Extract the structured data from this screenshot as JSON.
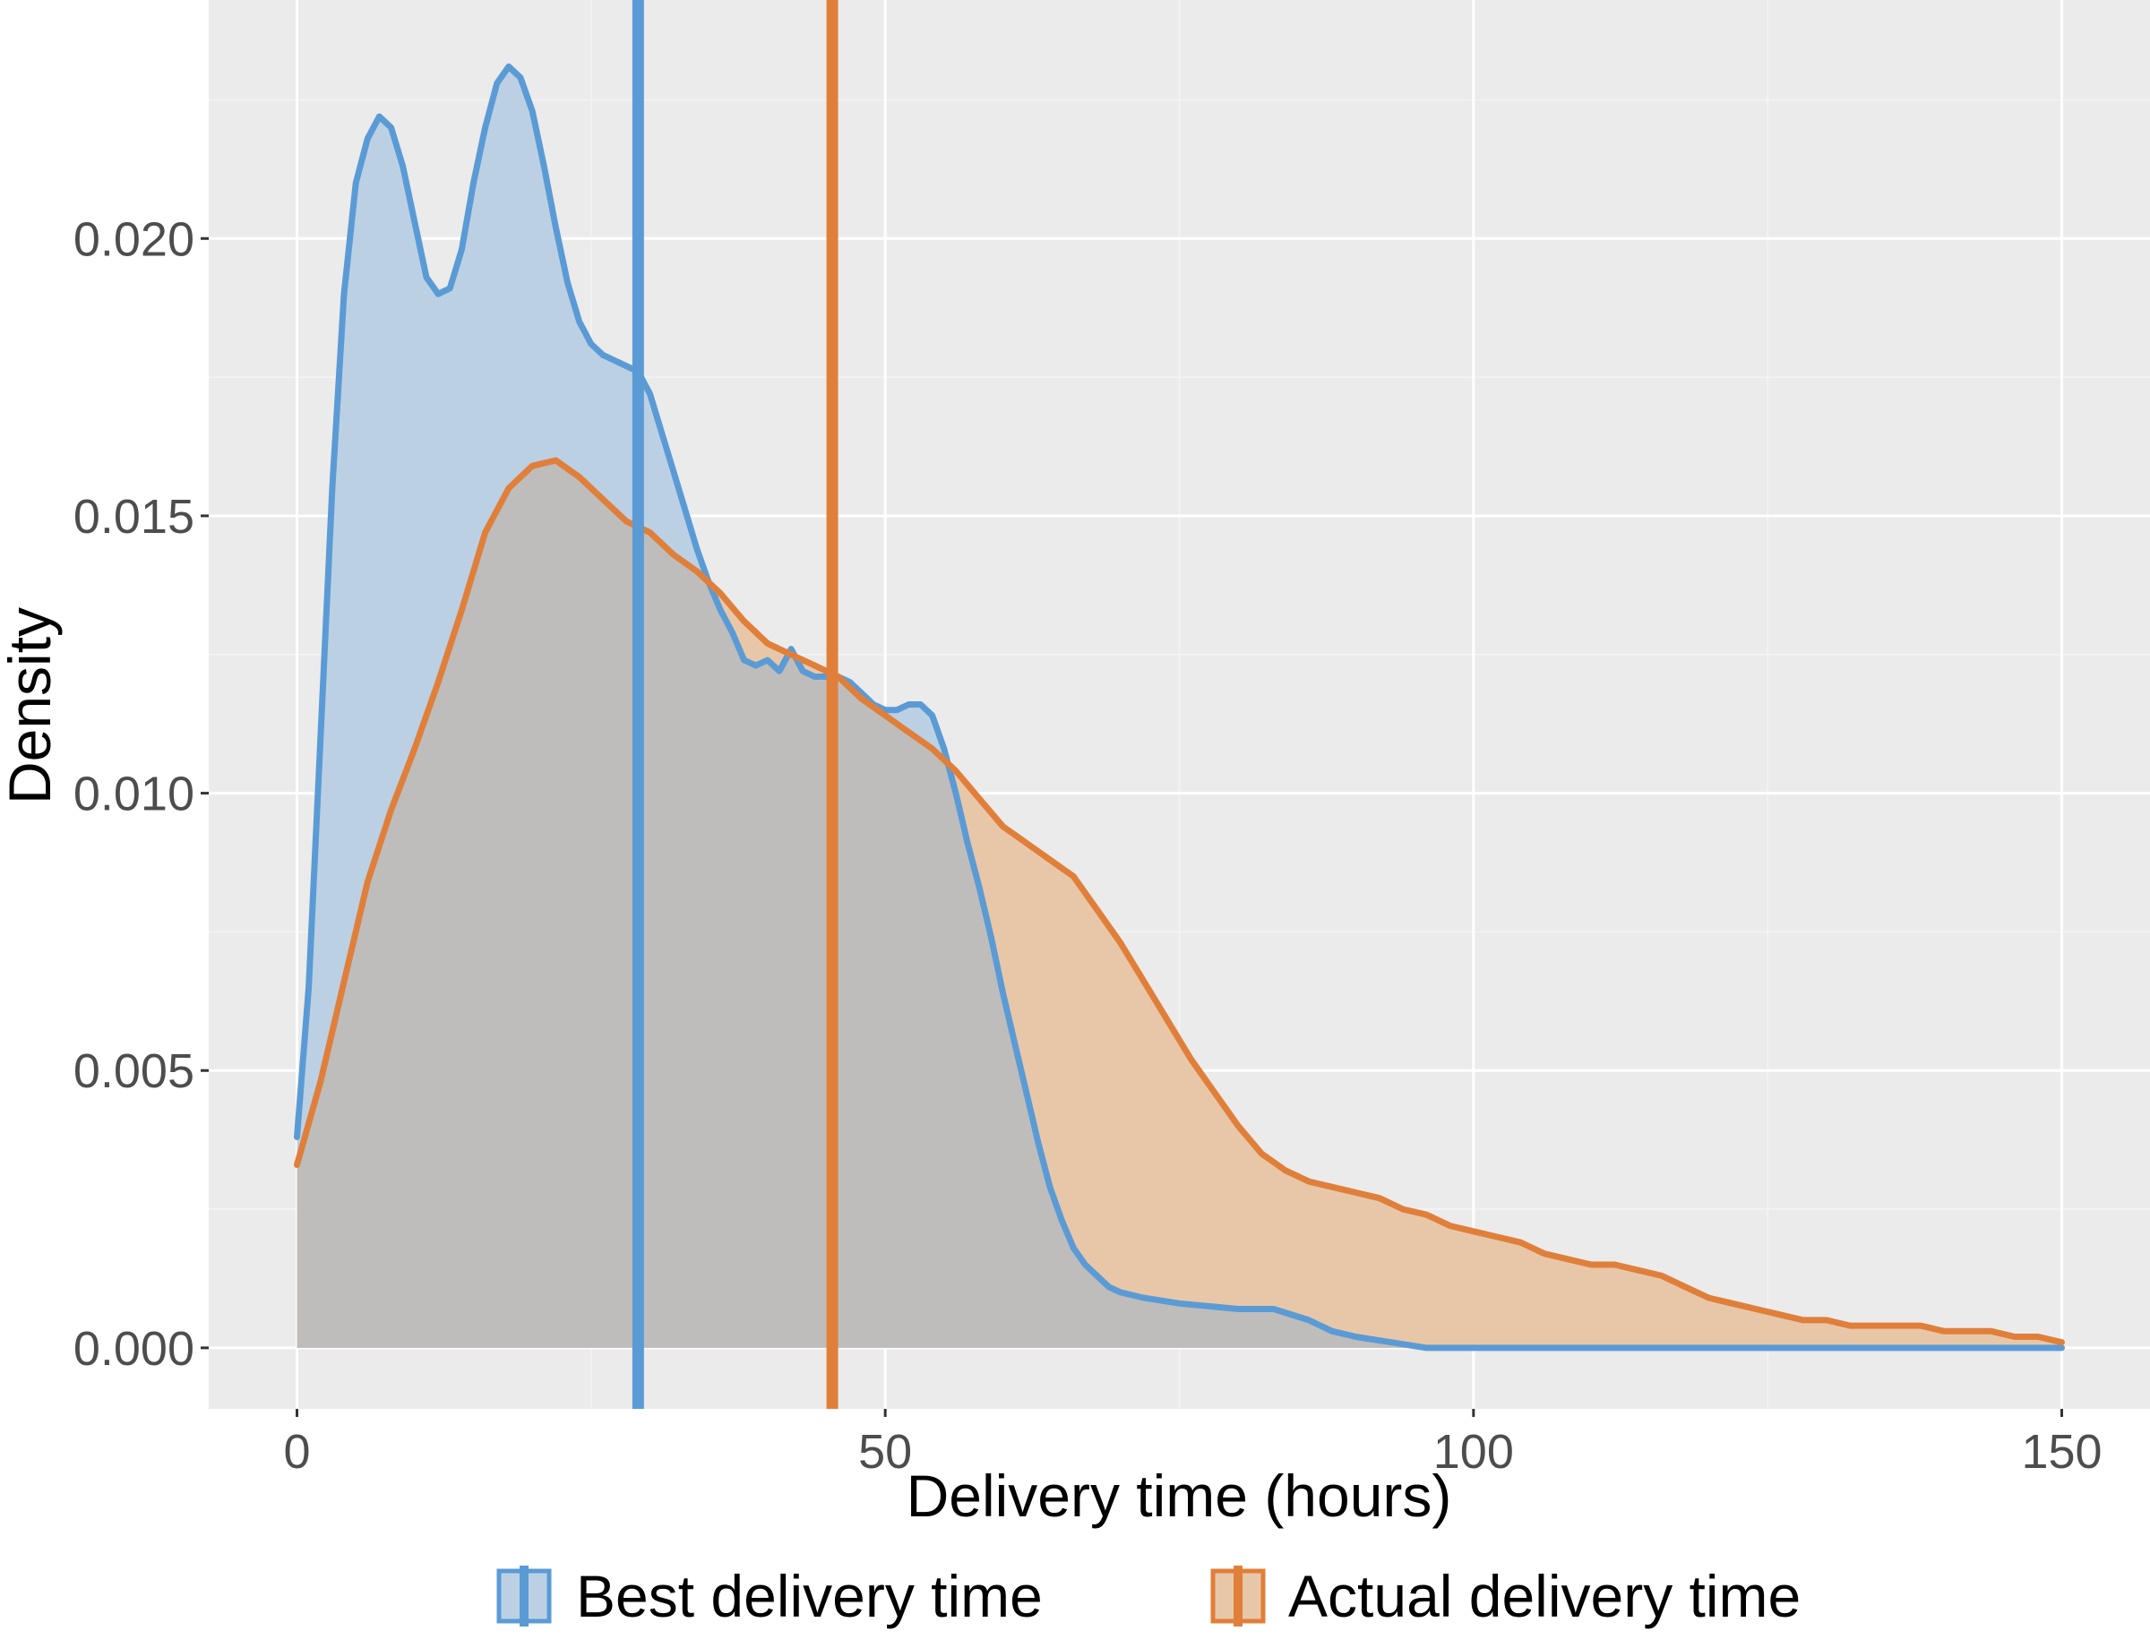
{
  "chart_data": {
    "type": "area",
    "xlabel": "Delivery time (hours)",
    "ylabel": "Density",
    "xlim": [
      -7.5,
      157.5
    ],
    "ylim": [
      -0.0011,
      0.0243
    ],
    "x_ticks": [
      0,
      50,
      100,
      150
    ],
    "x_tick_labels": [
      "0",
      "50",
      "100",
      "150"
    ],
    "y_ticks": [
      0.0,
      0.005,
      0.01,
      0.015,
      0.02
    ],
    "y_tick_labels": [
      "0.000",
      "0.005",
      "0.010",
      "0.015",
      "0.020"
    ],
    "grid": true,
    "legend_position": "bottom",
    "series": [
      {
        "name": "Best delivery time",
        "color": "#5b9bd5",
        "mean_line_x": 29,
        "points": [
          [
            0,
            0.0038
          ],
          [
            1,
            0.0065
          ],
          [
            2,
            0.011
          ],
          [
            3,
            0.0155
          ],
          [
            4,
            0.019
          ],
          [
            5,
            0.021
          ],
          [
            6,
            0.0218
          ],
          [
            7,
            0.0222
          ],
          [
            8,
            0.022
          ],
          [
            9,
            0.0213
          ],
          [
            10,
            0.0203
          ],
          [
            11,
            0.0193
          ],
          [
            12,
            0.019
          ],
          [
            13,
            0.0191
          ],
          [
            14,
            0.0198
          ],
          [
            15,
            0.021
          ],
          [
            16,
            0.022
          ],
          [
            17,
            0.0228
          ],
          [
            18,
            0.0231
          ],
          [
            19,
            0.0229
          ],
          [
            20,
            0.0223
          ],
          [
            21,
            0.0213
          ],
          [
            22,
            0.0202
          ],
          [
            23,
            0.0192
          ],
          [
            24,
            0.0185
          ],
          [
            25,
            0.0181
          ],
          [
            26,
            0.0179
          ],
          [
            27,
            0.0178
          ],
          [
            28,
            0.0177
          ],
          [
            29,
            0.0176
          ],
          [
            30,
            0.0172
          ],
          [
            31,
            0.0165
          ],
          [
            32,
            0.0158
          ],
          [
            33,
            0.0151
          ],
          [
            34,
            0.0144
          ],
          [
            35,
            0.0138
          ],
          [
            36,
            0.0133
          ],
          [
            37,
            0.0129
          ],
          [
            38,
            0.0124
          ],
          [
            39,
            0.0123
          ],
          [
            40,
            0.0124
          ],
          [
            41,
            0.0122
          ],
          [
            42,
            0.0126
          ],
          [
            43,
            0.0122
          ],
          [
            44,
            0.0121
          ],
          [
            45,
            0.0121
          ],
          [
            46,
            0.0121
          ],
          [
            47,
            0.012
          ],
          [
            48,
            0.0118
          ],
          [
            49,
            0.0116
          ],
          [
            50,
            0.0115
          ],
          [
            51,
            0.0115
          ],
          [
            52,
            0.0116
          ],
          [
            53,
            0.0116
          ],
          [
            54,
            0.0114
          ],
          [
            55,
            0.0108
          ],
          [
            56,
            0.01
          ],
          [
            57,
            0.0091
          ],
          [
            58,
            0.0083
          ],
          [
            59,
            0.0074
          ],
          [
            60,
            0.0064
          ],
          [
            61,
            0.0055
          ],
          [
            62,
            0.0046
          ],
          [
            63,
            0.0037
          ],
          [
            64,
            0.0029
          ],
          [
            65,
            0.0023
          ],
          [
            66,
            0.0018
          ],
          [
            67,
            0.0015
          ],
          [
            68,
            0.0013
          ],
          [
            69,
            0.0011
          ],
          [
            70,
            0.001
          ],
          [
            72,
            0.0009
          ],
          [
            75,
            0.0008
          ],
          [
            80,
            0.0007
          ],
          [
            83,
            0.0007
          ],
          [
            86,
            0.0005
          ],
          [
            88,
            0.0003
          ],
          [
            90,
            0.0002
          ],
          [
            93,
            0.0001
          ],
          [
            96,
            0.0
          ],
          [
            100,
            0.0
          ],
          [
            110,
            0.0
          ],
          [
            120,
            0.0
          ],
          [
            130,
            0.0
          ],
          [
            140,
            0.0
          ],
          [
            150,
            0.0
          ]
        ]
      },
      {
        "name": "Actual delivery time",
        "color": "#e07f3a",
        "mean_line_x": 45.5,
        "points": [
          [
            0,
            0.0033
          ],
          [
            2,
            0.0048
          ],
          [
            4,
            0.0066
          ],
          [
            6,
            0.0084
          ],
          [
            8,
            0.0097
          ],
          [
            10,
            0.0108
          ],
          [
            12,
            0.012
          ],
          [
            14,
            0.0133
          ],
          [
            16,
            0.0147
          ],
          [
            18,
            0.0155
          ],
          [
            20,
            0.0159
          ],
          [
            22,
            0.016
          ],
          [
            24,
            0.0157
          ],
          [
            26,
            0.0153
          ],
          [
            28,
            0.0149
          ],
          [
            30,
            0.0147
          ],
          [
            32,
            0.0143
          ],
          [
            34,
            0.014
          ],
          [
            36,
            0.0136
          ],
          [
            38,
            0.0131
          ],
          [
            40,
            0.0127
          ],
          [
            42,
            0.0125
          ],
          [
            44,
            0.0123
          ],
          [
            46,
            0.0121
          ],
          [
            48,
            0.0117
          ],
          [
            50,
            0.0114
          ],
          [
            52,
            0.0111
          ],
          [
            54,
            0.0108
          ],
          [
            56,
            0.0104
          ],
          [
            58,
            0.0099
          ],
          [
            60,
            0.0094
          ],
          [
            62,
            0.0091
          ],
          [
            64,
            0.0088
          ],
          [
            66,
            0.0085
          ],
          [
            68,
            0.0079
          ],
          [
            70,
            0.0073
          ],
          [
            72,
            0.0066
          ],
          [
            74,
            0.0059
          ],
          [
            76,
            0.0052
          ],
          [
            78,
            0.0046
          ],
          [
            80,
            0.004
          ],
          [
            82,
            0.0035
          ],
          [
            84,
            0.0032
          ],
          [
            86,
            0.003
          ],
          [
            88,
            0.0029
          ],
          [
            90,
            0.0028
          ],
          [
            92,
            0.0027
          ],
          [
            94,
            0.0025
          ],
          [
            96,
            0.0024
          ],
          [
            98,
            0.0022
          ],
          [
            100,
            0.0021
          ],
          [
            102,
            0.002
          ],
          [
            104,
            0.0019
          ],
          [
            106,
            0.0017
          ],
          [
            108,
            0.0016
          ],
          [
            110,
            0.0015
          ],
          [
            112,
            0.0015
          ],
          [
            114,
            0.0014
          ],
          [
            116,
            0.0013
          ],
          [
            118,
            0.0011
          ],
          [
            120,
            0.0009
          ],
          [
            122,
            0.0008
          ],
          [
            124,
            0.0007
          ],
          [
            126,
            0.0006
          ],
          [
            128,
            0.0005
          ],
          [
            130,
            0.0005
          ],
          [
            132,
            0.0004
          ],
          [
            134,
            0.0004
          ],
          [
            136,
            0.0004
          ],
          [
            138,
            0.0004
          ],
          [
            140,
            0.0003
          ],
          [
            142,
            0.0003
          ],
          [
            144,
            0.0003
          ],
          [
            146,
            0.0002
          ],
          [
            148,
            0.0002
          ],
          [
            150,
            0.0001
          ]
        ]
      }
    ]
  }
}
